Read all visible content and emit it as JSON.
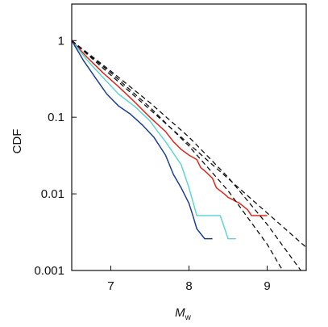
{
  "chart_data": {
    "type": "line",
    "title": "",
    "xlabel": "M",
    "xlabel_subscript": "w",
    "ylabel": "CDF",
    "xlim": [
      6.5,
      9.5
    ],
    "ylim": [
      0.001,
      3
    ],
    "yscale": "log",
    "xticks": [
      7,
      8,
      9
    ],
    "xtick_labels": [
      "7",
      "8",
      "9"
    ],
    "yticks": [
      1,
      0.1,
      0.01,
      0.001
    ],
    "ytick_labels": [
      "1",
      "0.1",
      "0.01",
      "0.001"
    ],
    "grid": false,
    "legend": "none",
    "series": [
      {
        "color": "#d62a1e",
        "style": "solid",
        "x": [
          6.5,
          6.7,
          6.9,
          7.1,
          7.3,
          7.5,
          7.7,
          7.8,
          7.9,
          8.0,
          8.1,
          8.15,
          8.2,
          8.3,
          8.35,
          8.45,
          8.5,
          8.55,
          8.65,
          8.75,
          8.8,
          8.9,
          9.0
        ],
        "y": [
          1.0,
          0.6,
          0.38,
          0.25,
          0.16,
          0.1,
          0.065,
          0.048,
          0.038,
          0.032,
          0.028,
          0.022,
          0.02,
          0.016,
          0.012,
          0.01,
          0.009,
          0.0085,
          0.0075,
          0.0062,
          0.0052,
          0.0052,
          0.0052
        ]
      },
      {
        "color": "#5fd6cf",
        "style": "solid",
        "x": [
          6.5,
          6.7,
          6.9,
          7.1,
          7.3,
          7.5,
          7.6,
          7.7,
          7.8,
          7.9,
          8.0,
          8.1,
          8.4,
          8.5,
          8.55,
          8.6
        ],
        "y": [
          1.0,
          0.55,
          0.33,
          0.2,
          0.14,
          0.09,
          0.065,
          0.048,
          0.034,
          0.024,
          0.012,
          0.0052,
          0.0052,
          0.0026,
          0.0026,
          0.0026
        ]
      },
      {
        "color": "#1c3f8f",
        "style": "solid",
        "x": [
          6.5,
          6.65,
          6.8,
          6.95,
          7.1,
          7.25,
          7.4,
          7.55,
          7.7,
          7.8,
          7.9,
          8.0,
          8.05,
          8.1,
          8.2,
          8.3
        ],
        "y": [
          1.0,
          0.55,
          0.33,
          0.2,
          0.14,
          0.11,
          0.08,
          0.055,
          0.032,
          0.018,
          0.012,
          0.0075,
          0.0052,
          0.0035,
          0.0026,
          0.0026
        ]
      },
      {
        "color": "#111111",
        "style": "dashed",
        "x": [
          6.5,
          9.5
        ],
        "y": [
          1.0,
          0.002
        ]
      },
      {
        "color": "#111111",
        "style": "dashed",
        "x": [
          6.5,
          7.0,
          7.5,
          8.0,
          8.5,
          9.0,
          9.5
        ],
        "y": [
          1.0,
          0.4,
          0.155,
          0.055,
          0.0165,
          0.004,
          0.0008
        ]
      },
      {
        "color": "#111111",
        "style": "dashed",
        "x": [
          6.5,
          7.0,
          7.5,
          8.0,
          8.5,
          9.0,
          9.5
        ],
        "y": [
          1.0,
          0.38,
          0.135,
          0.042,
          0.011,
          0.0022,
          0.0003
        ]
      }
    ]
  }
}
